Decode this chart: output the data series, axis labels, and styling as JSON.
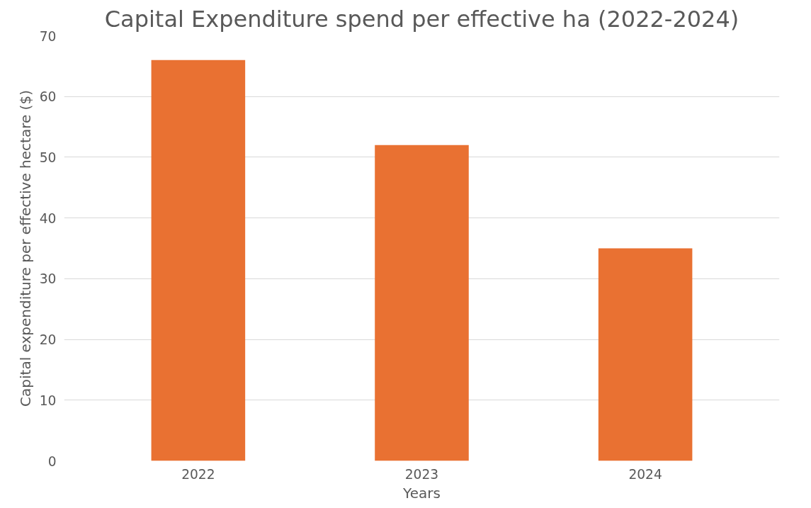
{
  "chart_data": {
    "type": "bar",
    "title": "Capital Expenditure spend per effective ha (2022-2024)",
    "xlabel": "Years",
    "ylabel": "Capital expenditure per effective hectare ($)",
    "categories": [
      "2022",
      "2023",
      "2024"
    ],
    "values": [
      66,
      52,
      35
    ],
    "color": "#e97132",
    "ylim": [
      0,
      70
    ],
    "yticks": [
      0,
      10,
      20,
      30,
      40,
      50,
      60,
      70
    ],
    "grid": "y"
  }
}
